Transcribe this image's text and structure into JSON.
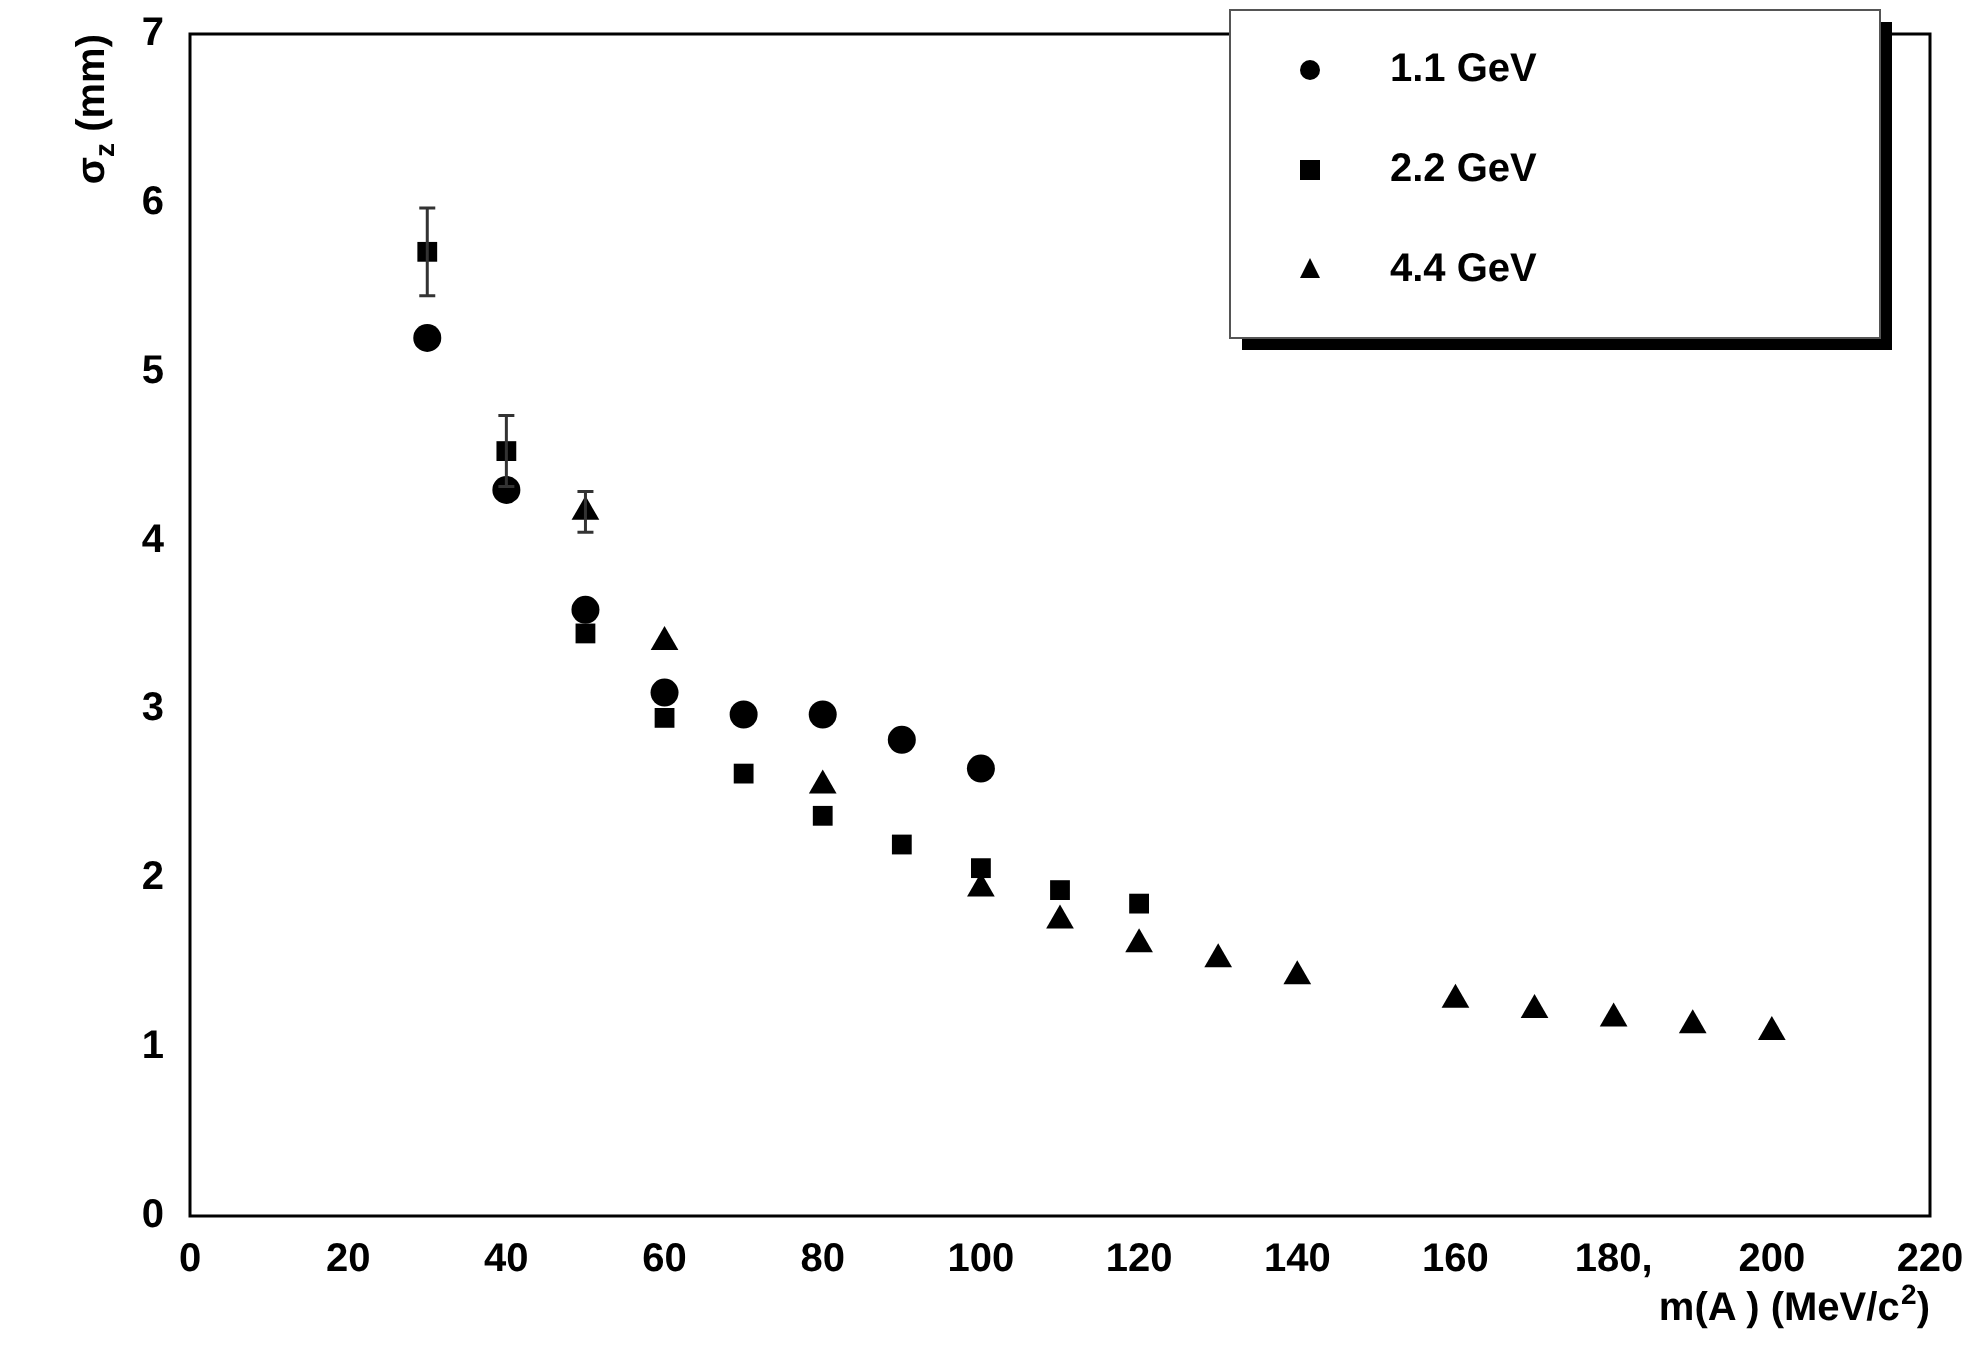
{
  "chart_data": {
    "type": "scatter",
    "xlabel": "m(A ) (MeV/c$^{2}$)",
    "ylabel": "σ$_{z}$ (mm)",
    "xlim": [
      0,
      220
    ],
    "xticks": [
      0,
      20,
      40,
      60,
      80,
      100,
      120,
      140,
      160,
      {
        "value": 180,
        "label": "180,"
      },
      200,
      220
    ],
    "ylim": [
      0,
      7
    ],
    "yticks": [
      0,
      1,
      2,
      3,
      4,
      5,
      6,
      7
    ],
    "grid": false,
    "legend": "top right",
    "series": [
      {
        "name": "1.1 GeV",
        "color": "#000000",
        "marker": "circle",
        "x": [
          30,
          40,
          50,
          60,
          70,
          80,
          90,
          100
        ],
        "values": [
          5.2,
          4.3,
          3.59,
          3.1,
          2.97,
          2.97,
          2.82,
          2.65
        ]
      },
      {
        "name": "2.2 GeV",
        "color": "#000000",
        "marker": "square",
        "x": [
          30,
          40,
          50,
          60,
          70,
          80,
          90,
          100,
          110,
          120
        ],
        "values": [
          5.71,
          4.53,
          3.45,
          2.95,
          2.62,
          2.37,
          2.2,
          2.06,
          1.93,
          1.85
        ],
        "errors": [
          0.26,
          0.21,
          null,
          null,
          null,
          null,
          null,
          null,
          null,
          null
        ]
      },
      {
        "name": "4.4 GeV",
        "color": "#000000",
        "marker": "triangle",
        "x": [
          50,
          60,
          70,
          80,
          90,
          100,
          110,
          120,
          130,
          140,
          160,
          170,
          180,
          190,
          200
        ],
        "values": [
          4.17,
          3.4,
          null,
          2.55,
          null,
          1.94,
          1.75,
          1.61,
          1.52,
          1.42,
          1.28,
          1.22,
          1.17,
          1.13,
          1.09
        ],
        "errors": [
          0.12,
          null,
          null,
          null,
          null,
          null,
          null,
          null,
          null,
          null,
          null,
          null,
          null,
          null,
          null
        ]
      }
    ]
  }
}
